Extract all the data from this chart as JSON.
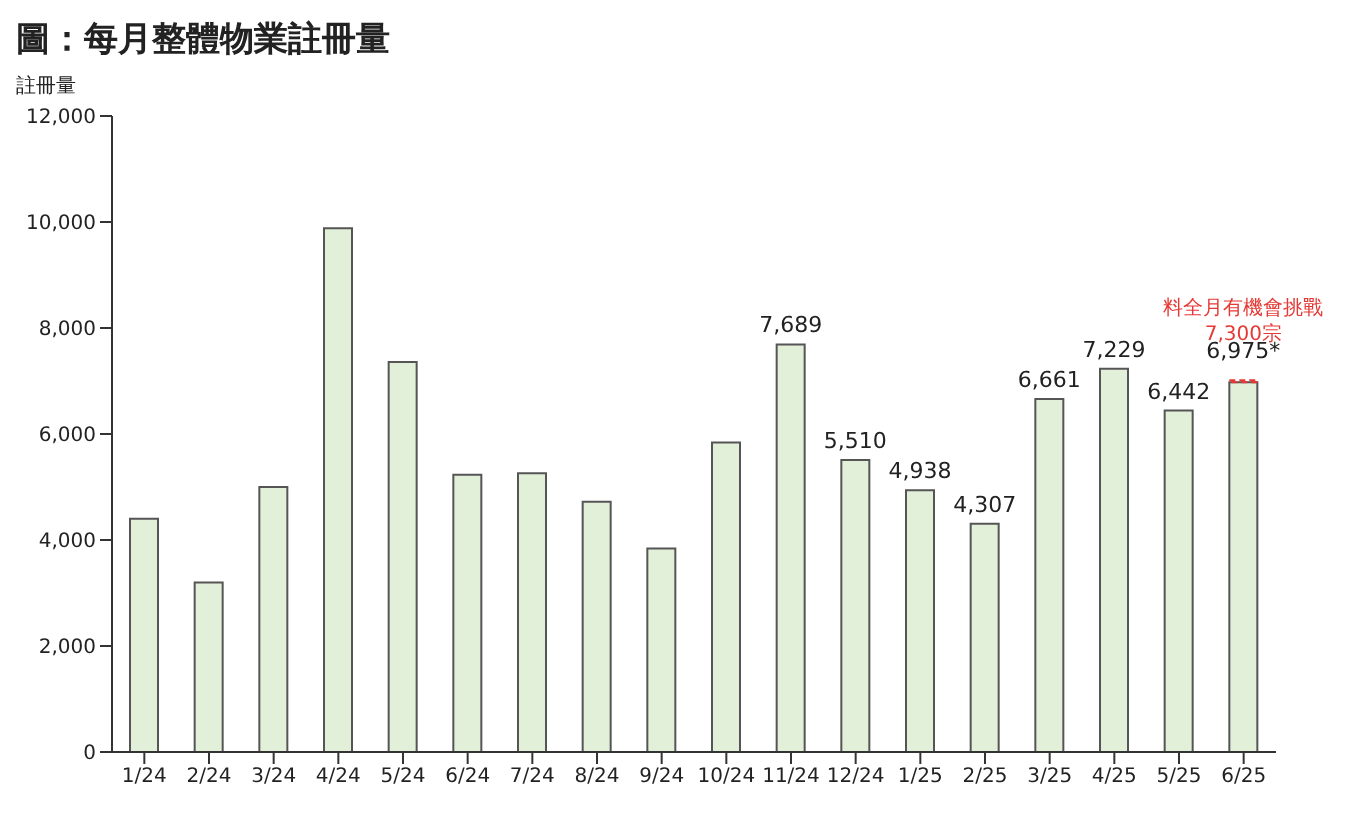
{
  "chart_data": {
    "type": "bar",
    "title": "圖：每月整體物業註冊量",
    "ylabel": "註冊量",
    "categories": [
      "1/24",
      "2/24",
      "3/24",
      "4/24",
      "5/24",
      "6/24",
      "7/24",
      "8/24",
      "9/24",
      "10/24",
      "11/24",
      "12/24",
      "1/25",
      "2/25",
      "3/25",
      "4/25",
      "5/25",
      "6/25"
    ],
    "values": [
      4400,
      3200,
      5000,
      9880,
      7360,
      5230,
      5260,
      4720,
      3840,
      5840,
      7689,
      5510,
      4938,
      4307,
      6661,
      7229,
      6442,
      6975
    ],
    "value_labels": [
      null,
      null,
      null,
      null,
      null,
      null,
      null,
      null,
      null,
      null,
      "7,689",
      "5,510",
      "4,938",
      "4,307",
      "6,661",
      "7,229",
      "6,442",
      "6,975*"
    ],
    "color": "#e2efd9",
    "ylim": [
      0,
      12000
    ],
    "yticks": [
      {
        "value": 0,
        "label": "0"
      },
      {
        "value": 2000,
        "label": "2,000"
      },
      {
        "value": 4000,
        "label": "4,000"
      },
      {
        "value": 6000,
        "label": "6,000"
      },
      {
        "value": 8000,
        "label": "8,000"
      },
      {
        "value": 10000,
        "label": "10,000"
      },
      {
        "value": 12000,
        "label": "12,000"
      }
    ],
    "annotations": [
      "料全月有機會挑戰\n7,300宗"
    ],
    "grid": false,
    "legend": false
  }
}
